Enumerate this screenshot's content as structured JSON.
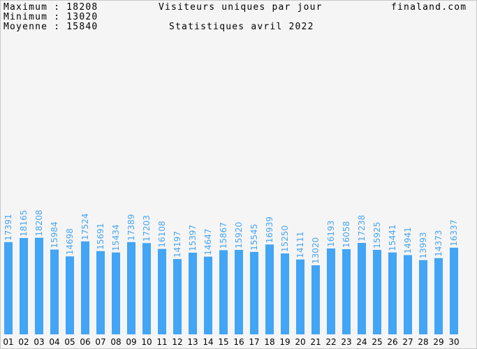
{
  "header": {
    "max_label": "Maximum",
    "max_value": "18208",
    "min_label": "Minimum",
    "min_value": "13020",
    "avg_label": "Moyenne",
    "avg_value": "15840",
    "site": "finaland.com"
  },
  "chart_data": {
    "type": "bar",
    "title": "Visiteurs uniques par jour",
    "subtitle": "Statistiques avril 2022",
    "categories": [
      "01",
      "02",
      "03",
      "04",
      "05",
      "06",
      "07",
      "08",
      "09",
      "10",
      "11",
      "12",
      "13",
      "14",
      "15",
      "16",
      "17",
      "18",
      "19",
      "20",
      "21",
      "22",
      "23",
      "24",
      "25",
      "26",
      "27",
      "28",
      "29",
      "30"
    ],
    "values": [
      17391,
      18165,
      18208,
      15984,
      14698,
      17524,
      15691,
      15434,
      17389,
      17203,
      16108,
      14197,
      15397,
      14647,
      15867,
      15920,
      15545,
      16939,
      15250,
      14111,
      13020,
      16193,
      16058,
      17238,
      15925,
      15441,
      14941,
      13993,
      14373,
      16337
    ],
    "ylim": [
      0,
      40000
    ],
    "grid": false,
    "bar_color": "#42a5f5",
    "label_color": "#4aa6f0"
  }
}
